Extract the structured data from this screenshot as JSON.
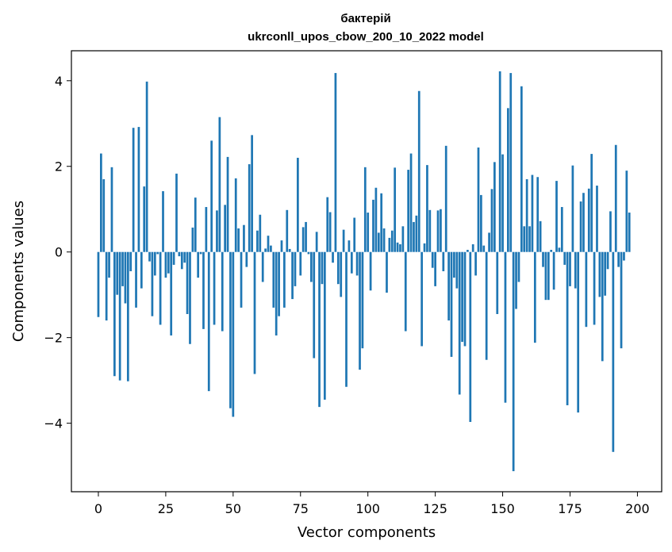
{
  "chart_data": {
    "type": "bar",
    "title_line1": "бактерій",
    "title_line2": "ukrconll_upos_cbow_200_10_2022 model",
    "xlabel": "Vector components",
    "ylabel": "Components values",
    "xlim": [
      -10,
      209
    ],
    "ylim": [
      -5.6,
      4.7
    ],
    "xticks": [
      0,
      25,
      50,
      75,
      100,
      125,
      150,
      175,
      200
    ],
    "xtick_labels": [
      "0",
      "25",
      "50",
      "75",
      "100",
      "125",
      "150",
      "175",
      "200"
    ],
    "yticks": [
      -4,
      -2,
      0,
      2,
      4
    ],
    "ytick_labels": [
      "−4",
      "−2",
      "0",
      "2",
      "4"
    ],
    "grid": false,
    "bar_color": "#1f77b4",
    "values": [
      -1.52,
      2.3,
      1.7,
      -1.6,
      -0.6,
      1.98,
      -2.9,
      -1.0,
      -3.0,
      -0.8,
      -1.2,
      -3.02,
      -0.45,
      2.9,
      -1.3,
      2.92,
      -0.85,
      1.53,
      3.98,
      -0.22,
      -1.5,
      -0.55,
      -0.05,
      -1.7,
      1.42,
      -0.6,
      -0.5,
      -1.95,
      -0.3,
      1.83,
      -0.1,
      -0.4,
      -0.25,
      -1.45,
      -2.15,
      0.57,
      1.27,
      -0.6,
      -0.05,
      -1.8,
      1.05,
      -3.25,
      2.6,
      -1.7,
      0.97,
      3.15,
      -1.85,
      1.1,
      2.22,
      -3.65,
      -3.85,
      1.72,
      0.55,
      -1.3,
      0.63,
      -0.35,
      2.05,
      2.73,
      -2.85,
      0.5,
      0.87,
      -0.7,
      0.08,
      0.38,
      0.15,
      -1.3,
      -1.95,
      -1.5,
      0.27,
      -1.3,
      0.98,
      0.07,
      -1.1,
      -0.8,
      2.2,
      -0.55,
      0.58,
      0.7,
      -0.05,
      -0.7,
      -2.48,
      0.47,
      -3.62,
      -0.75,
      -3.45,
      1.28,
      0.93,
      -0.25,
      4.18,
      -0.75,
      -1.05,
      0.52,
      -3.15,
      0.27,
      -0.5,
      0.8,
      -0.55,
      -2.75,
      -2.25,
      1.98,
      0.92,
      -0.9,
      1.22,
      1.5,
      0.45,
      1.37,
      0.55,
      -0.95,
      0.33,
      0.5,
      1.97,
      0.22,
      0.18,
      0.6,
      -1.85,
      1.92,
      2.3,
      0.7,
      0.85,
      3.76,
      -2.2,
      0.2,
      2.03,
      0.98,
      -0.37,
      -0.8,
      0.97,
      1.0,
      -0.45,
      2.48,
      -1.6,
      -2.45,
      -0.6,
      -0.85,
      -3.33,
      -2.1,
      -2.2,
      0.05,
      -3.97,
      0.18,
      -0.55,
      2.44,
      1.33,
      0.15,
      -2.52,
      0.45,
      1.47,
      2.1,
      -1.45,
      4.22,
      2.28,
      -3.52,
      3.36,
      4.18,
      -5.12,
      -1.33,
      -0.7,
      3.87,
      0.6,
      1.7,
      0.6,
      1.8,
      -2.12,
      1.75,
      0.72,
      -0.35,
      -1.12,
      -1.12,
      0.05,
      -0.88,
      1.66,
      0.1,
      1.05,
      -0.3,
      -3.58,
      -0.8,
      2.02,
      -0.85,
      -3.75,
      1.18,
      1.38,
      -1.75,
      1.48,
      2.29,
      -1.7,
      1.55,
      -1.05,
      -2.55,
      -1.02,
      -0.4,
      0.95,
      -4.67,
      2.5,
      -0.35,
      -2.25,
      -0.2,
      1.9,
      0.92
    ]
  }
}
